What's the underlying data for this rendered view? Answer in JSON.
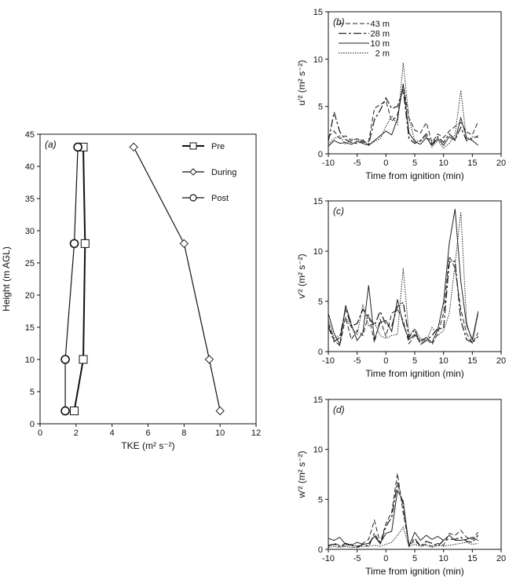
{
  "chart_data": [
    {
      "panel_label": "(a)",
      "type": "line",
      "orientation": "profile",
      "xlabel": "TKE (m² s⁻²)",
      "ylabel": "Height (m AGL)",
      "xlim": [
        0,
        12
      ],
      "ylim": [
        0,
        45
      ],
      "xticks": [
        0,
        2,
        4,
        6,
        8,
        10,
        12
      ],
      "yticks": [
        0,
        5,
        10,
        15,
        20,
        25,
        30,
        35,
        40,
        45
      ],
      "legend_position": "top-right",
      "series": [
        {
          "name": "Pre",
          "marker": "square",
          "points": [
            {
              "x": 1.9,
              "y": 2
            },
            {
              "x": 2.4,
              "y": 10
            },
            {
              "x": 2.5,
              "y": 28
            },
            {
              "x": 2.4,
              "y": 43
            }
          ]
        },
        {
          "name": "During",
          "marker": "diamond",
          "points": [
            {
              "x": 10.0,
              "y": 2
            },
            {
              "x": 9.4,
              "y": 10
            },
            {
              "x": 8.0,
              "y": 28
            },
            {
              "x": 5.2,
              "y": 43
            }
          ]
        },
        {
          "name": "Post",
          "marker": "circle",
          "points": [
            {
              "x": 1.4,
              "y": 2
            },
            {
              "x": 1.4,
              "y": 10
            },
            {
              "x": 1.9,
              "y": 28
            },
            {
              "x": 2.1,
              "y": 43
            }
          ]
        }
      ]
    },
    {
      "panel_label": "(b)",
      "type": "line",
      "xlabel": "Time from ignition (min)",
      "ylabel": "u'² (m² s⁻²)",
      "xlim": [
        -10,
        20
      ],
      "ylim": [
        0,
        15
      ],
      "xticks": [
        -10,
        -5,
        0,
        5,
        10,
        15,
        20
      ],
      "yticks": [
        0,
        5,
        10,
        15
      ],
      "legend_position": "top-left",
      "x": [
        -10,
        -9,
        -8,
        -7,
        -6,
        -5,
        -4,
        -3,
        -2,
        -1,
        0,
        1,
        2,
        3,
        4,
        5,
        6,
        7,
        8,
        9,
        10,
        11,
        12,
        13,
        14,
        15,
        16
      ],
      "series": [
        {
          "name": "43 m",
          "values": [
            1.8,
            2.4,
            1.6,
            1.9,
            1.4,
            1.6,
            1.2,
            1.3,
            4.8,
            5.2,
            5.6,
            3.4,
            4.1,
            7.3,
            3.8,
            2.5,
            2.2,
            3.3,
            1.2,
            2.1,
            1.7,
            2.4,
            2.9,
            3.3,
            2.3,
            2.0,
            3.4
          ]
        },
        {
          "name": "28 m",
          "values": [
            1.3,
            4.4,
            2.3,
            1.5,
            1.2,
            1.1,
            1.4,
            1.0,
            3.6,
            4.6,
            5.9,
            4.8,
            5.0,
            6.8,
            1.6,
            1.1,
            1.4,
            2.1,
            1.0,
            1.8,
            1.2,
            2.1,
            1.5,
            2.8,
            1.4,
            1.6,
            1.9
          ]
        },
        {
          "name": "10 m",
          "values": [
            0.8,
            1.4,
            1.1,
            1.2,
            1.0,
            1.3,
            1.1,
            0.9,
            1.4,
            1.9,
            2.4,
            2.0,
            3.7,
            7.4,
            2.2,
            1.3,
            1.0,
            1.7,
            0.9,
            1.6,
            0.9,
            1.8,
            1.4,
            3.8,
            1.7,
            1.4,
            0.9
          ]
        },
        {
          "name": "2 m",
          "values": [
            1.0,
            1.6,
            1.9,
            1.0,
            1.6,
            1.4,
            1.5,
            0.9,
            1.3,
            1.6,
            2.9,
            4.0,
            3.1,
            9.6,
            3.7,
            1.4,
            1.3,
            1.9,
            0.7,
            1.4,
            0.6,
            1.1,
            2.0,
            6.7,
            1.4,
            1.8,
            1.7
          ]
        }
      ]
    },
    {
      "panel_label": "(c)",
      "type": "line",
      "xlabel": "Time from ignition (min)",
      "ylabel": "v'² (m² s⁻²)",
      "xlim": [
        -10,
        20
      ],
      "ylim": [
        0,
        15
      ],
      "xticks": [
        -10,
        -5,
        0,
        5,
        10,
        15,
        20
      ],
      "yticks": [
        0,
        5,
        10,
        15
      ],
      "x": [
        -10,
        -9,
        -8,
        -7,
        -6,
        -5,
        -4,
        -3,
        -2,
        -1,
        0,
        1,
        2,
        3,
        4,
        5,
        6,
        7,
        8,
        9,
        10,
        11,
        12,
        13,
        14,
        15,
        16
      ],
      "series": [
        {
          "name": "43 m",
          "values": [
            2.8,
            1.1,
            0.6,
            3.4,
            1.2,
            2.1,
            1.6,
            3.7,
            0.9,
            3.2,
            1.5,
            3.8,
            4.2,
            3.1,
            0.8,
            1.6,
            0.9,
            1.3,
            0.7,
            1.8,
            3.8,
            9.5,
            8.3,
            4.2,
            1.8,
            0.8,
            1.9
          ]
        },
        {
          "name": "28 m",
          "values": [
            2.5,
            1.0,
            1.4,
            4.3,
            2.5,
            2.8,
            4.2,
            3.4,
            2.6,
            4.0,
            2.7,
            2.5,
            4.5,
            4.9,
            1.4,
            2.2,
            0.7,
            1.1,
            1.6,
            2.3,
            2.3,
            8.9,
            9.0,
            3.1,
            1.2,
            0.9,
            1.5
          ]
        },
        {
          "name": "10 m",
          "values": [
            3.8,
            1.8,
            0.7,
            4.6,
            2.7,
            1.1,
            1.9,
            6.6,
            1.2,
            2.9,
            3.1,
            2.0,
            5.2,
            2.7,
            1.2,
            1.7,
            1.1,
            1.4,
            0.9,
            2.2,
            4.9,
            10.8,
            14.2,
            7.0,
            2.6,
            1.2,
            4.0
          ]
        },
        {
          "name": "2 m",
          "values": [
            3.2,
            1.3,
            1.6,
            3.4,
            2.4,
            1.7,
            4.7,
            2.5,
            2.9,
            1.6,
            1.3,
            1.6,
            1.7,
            8.3,
            1.6,
            2.3,
            1.3,
            1.1,
            2.4,
            1.6,
            2.1,
            3.8,
            8.7,
            13.9,
            3.0,
            0.8,
            3.7
          ]
        }
      ]
    },
    {
      "panel_label": "(d)",
      "type": "line",
      "xlabel": "Time from ignition (min)",
      "ylabel": "w'² (m² s⁻²)",
      "xlim": [
        -10,
        20
      ],
      "ylim": [
        0,
        15
      ],
      "xticks": [
        -10,
        -5,
        0,
        5,
        10,
        15,
        20
      ],
      "yticks": [
        0,
        5,
        10,
        15
      ],
      "x": [
        -10,
        -9,
        -8,
        -7,
        -6,
        -5,
        -4,
        -3,
        -2,
        -1,
        0,
        1,
        2,
        3,
        4,
        5,
        6,
        7,
        8,
        9,
        10,
        11,
        12,
        13,
        14,
        15,
        16
      ],
      "series": [
        {
          "name": "43 m",
          "values": [
            0.3,
            0.6,
            0.4,
            0.3,
            0.5,
            0.3,
            0.6,
            1.0,
            2.9,
            0.6,
            2.6,
            3.7,
            7.6,
            3.6,
            0.5,
            0.8,
            0.4,
            0.5,
            0.3,
            0.6,
            0.4,
            1.6,
            1.4,
            1.9,
            1.2,
            1.0,
            1.7
          ]
        },
        {
          "name": "28 m",
          "values": [
            0.4,
            0.5,
            0.3,
            0.6,
            0.4,
            0.2,
            0.5,
            0.3,
            1.6,
            0.5,
            2.3,
            3.2,
            6.7,
            4.4,
            0.4,
            1.1,
            0.3,
            0.8,
            0.6,
            0.3,
            0.9,
            1.0,
            1.0,
            1.2,
            0.8,
            0.7,
            1.4
          ]
        },
        {
          "name": "10 m",
          "values": [
            1.1,
            0.9,
            1.2,
            0.5,
            0.4,
            0.7,
            0.5,
            0.6,
            1.3,
            0.6,
            1.6,
            1.8,
            5.9,
            4.8,
            0.3,
            1.7,
            0.9,
            1.4,
            1.0,
            1.3,
            0.9,
            1.4,
            0.9,
            0.9,
            1.0,
            1.2,
            0.9
          ]
        },
        {
          "name": "2 m",
          "values": [
            0.2,
            0.3,
            0.2,
            0.3,
            0.2,
            0.2,
            0.3,
            0.3,
            0.4,
            0.3,
            0.5,
            0.7,
            1.4,
            2.2,
            0.3,
            0.5,
            0.3,
            0.4,
            0.2,
            0.4,
            0.3,
            0.4,
            0.5,
            0.6,
            0.7,
            0.5,
            0.6
          ]
        }
      ]
    }
  ]
}
